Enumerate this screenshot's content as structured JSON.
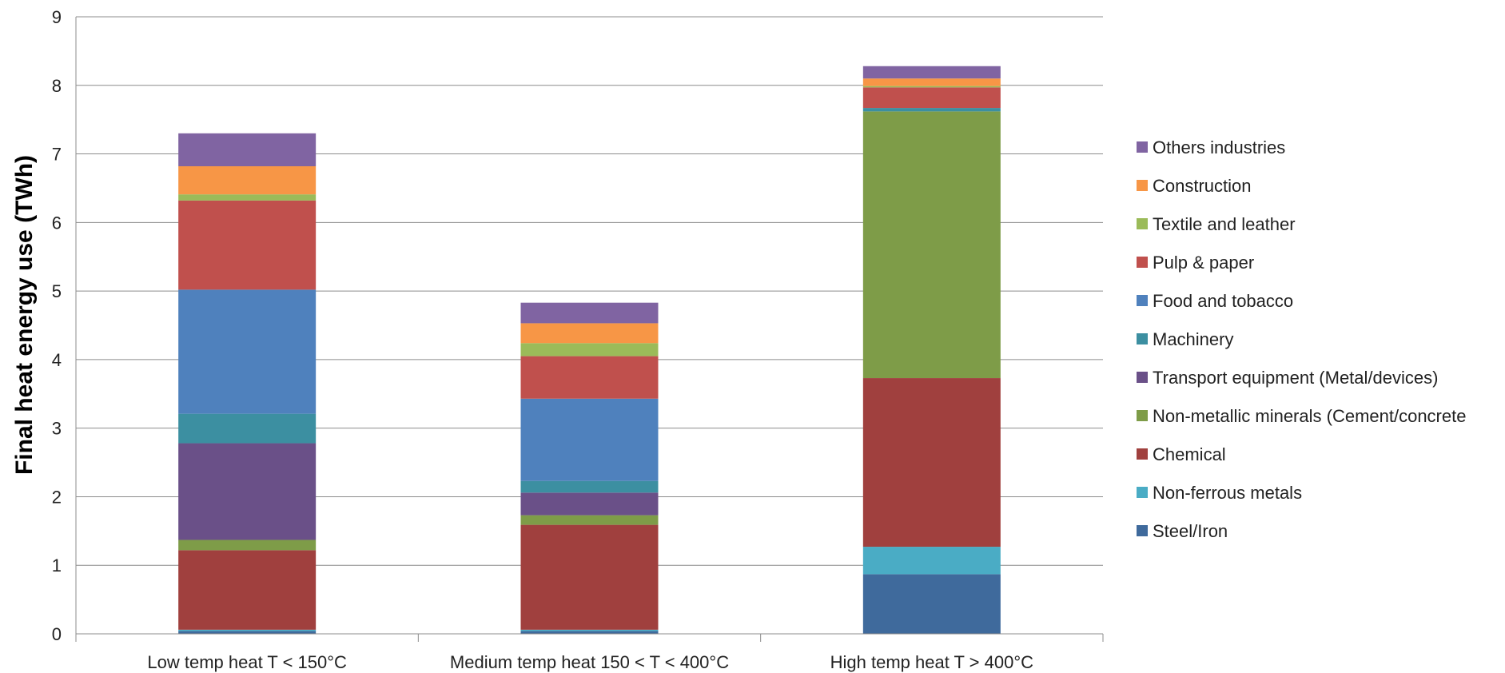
{
  "chart_data": {
    "type": "bar",
    "stacked": true,
    "ylabel": "Final heat energy use (TWh)",
    "xlabel": "",
    "ylim": [
      0,
      9
    ],
    "yticks": [
      0,
      1,
      2,
      3,
      4,
      5,
      6,
      7,
      8,
      9
    ],
    "grid": true,
    "legend_position": "right",
    "categories": [
      "Low temp heat T < 150°C",
      "Medium temp heat 150 < T < 400°C",
      "High temp heat T > 400°C"
    ],
    "series": [
      {
        "name": "Steel/Iron",
        "color": "#3F6A9C",
        "values": [
          0.04,
          0.04,
          0.87
        ]
      },
      {
        "name": "Non-ferrous metals",
        "color": "#4AACC5",
        "values": [
          0.02,
          0.02,
          0.4
        ]
      },
      {
        "name": "Chemical",
        "color": "#A0403E",
        "values": [
          1.16,
          1.53,
          2.46
        ]
      },
      {
        "name": "Non-metallic minerals (Cement/concrete",
        "color": "#7E9C48",
        "values": [
          0.15,
          0.14,
          3.89
        ]
      },
      {
        "name": "Transport equipment (Metal/devices)",
        "color": "#6A5088",
        "values": [
          1.41,
          0.33,
          0.0
        ]
      },
      {
        "name": "Machinery",
        "color": "#3C8FA1",
        "values": [
          0.43,
          0.17,
          0.05
        ]
      },
      {
        "name": "Food and tobacco",
        "color": "#4F81BD",
        "values": [
          1.81,
          1.2,
          0.0
        ]
      },
      {
        "name": "Pulp & paper",
        "color": "#C0504D",
        "values": [
          1.3,
          0.62,
          0.3
        ]
      },
      {
        "name": "Textile and leather",
        "color": "#9BBB59",
        "values": [
          0.09,
          0.19,
          0.02
        ]
      },
      {
        "name": "Construction",
        "color": "#F79646",
        "values": [
          0.41,
          0.29,
          0.11
        ]
      },
      {
        "name": "Others industries",
        "color": "#8064A2",
        "values": [
          0.48,
          0.3,
          0.18
        ]
      }
    ]
  }
}
